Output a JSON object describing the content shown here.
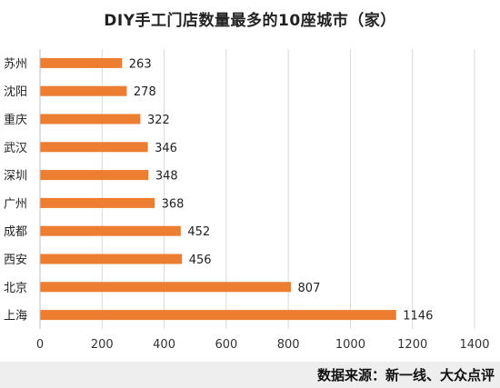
{
  "chart_data": {
    "type": "bar",
    "orientation": "horizontal",
    "title": "DIY手工门店数量最多的10座城市（家）",
    "categories": [
      "苏州",
      "沈阳",
      "重庆",
      "武汉",
      "深圳",
      "广州",
      "成都",
      "西安",
      "北京",
      "上海"
    ],
    "values": [
      263,
      278,
      322,
      346,
      348,
      368,
      452,
      456,
      807,
      1146
    ],
    "xlim": [
      0,
      1400
    ],
    "xticks": [
      0,
      200,
      400,
      600,
      800,
      1000,
      1200,
      1400
    ],
    "grid": "vertical",
    "bar_color": "#ED7D31",
    "data_labels": true,
    "source": "数据来源：新一线、大众点评"
  }
}
